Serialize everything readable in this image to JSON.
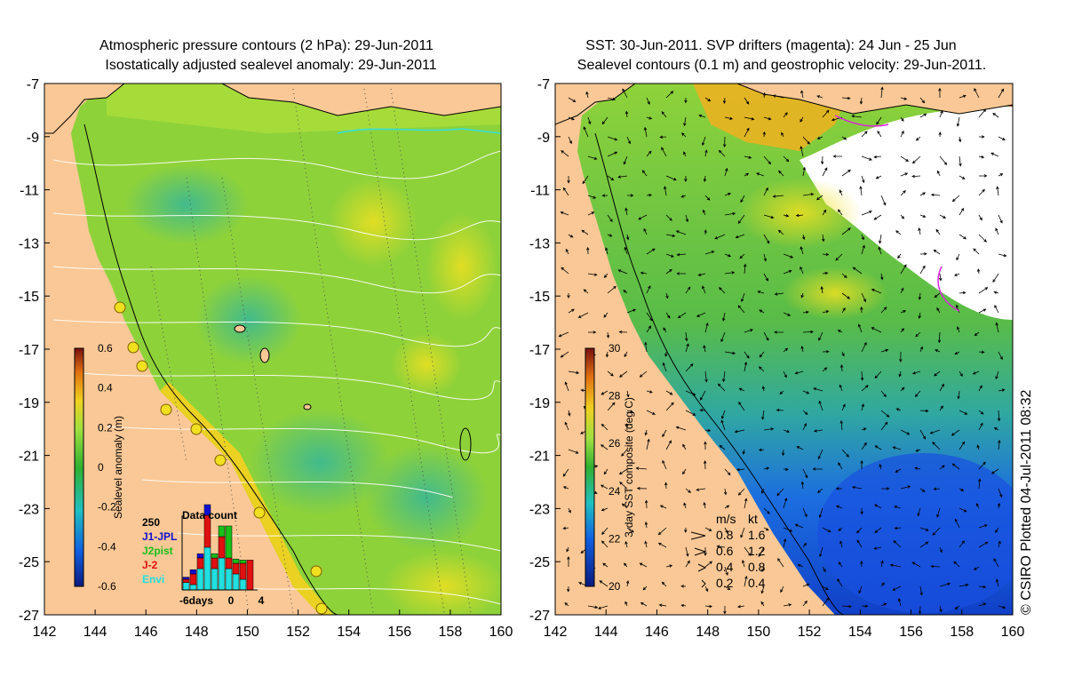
{
  "left_panel": {
    "title_line1": "Atmospheric pressure contours (2 hPa): 29-Jun-2011",
    "title_line2": "Isostatically adjusted sealevel anomaly: 29-Jun-2011",
    "colorbar": {
      "label": "Sealevel anomaly (m)",
      "ticks": [
        "0.6",
        "0.4",
        "0.2",
        "0",
        "-0.2",
        "-0.4",
        "-0.6"
      ]
    },
    "data_count": {
      "title": "Data count",
      "ymax_label": "250",
      "x_labels": [
        "-6days",
        "0",
        "4"
      ],
      "legend": [
        {
          "label": "J1-JPL",
          "color": "#1010d0"
        },
        {
          "label": "J2pist",
          "color": "#18c018"
        },
        {
          "label": "J-2",
          "color": "#e01010"
        },
        {
          "label": "Envi",
          "color": "#20e0e0"
        }
      ]
    }
  },
  "right_panel": {
    "title_line1": "SST: 30-Jun-2011. SVP drifters (magenta): 24 Jun - 25 Jun",
    "title_line2": "Sealevel contours (0.1 m) and geostrophic velocity: 29-Jun-2011.",
    "colorbar": {
      "label": "3-day SST composite (deg C)",
      "ticks": [
        "30",
        "28",
        "26",
        "24",
        "22",
        "20"
      ]
    },
    "speed_legend": {
      "header_ms": "m/s",
      "header_kt": "kt",
      "rows": [
        {
          "ms": "0.8",
          "kt": "1.6"
        },
        {
          "ms": "0.6",
          "kt": "1.2"
        },
        {
          "ms": "0.4",
          "kt": "0.8"
        },
        {
          "ms": "0.2",
          "kt": "0.4"
        }
      ]
    },
    "credit": "© CSIRO Plotted 04-Jul-2011 08:32"
  },
  "axes": {
    "x_ticks": [
      "142",
      "144",
      "146",
      "148",
      "150",
      "152",
      "154",
      "156",
      "158",
      "160"
    ],
    "y_ticks": [
      "-7",
      "-9",
      "-11",
      "-13",
      "-15",
      "-17",
      "-19",
      "-21",
      "-23",
      "-25",
      "-27"
    ]
  },
  "colors": {
    "land": "#fac896",
    "sea_green": "#8ed23a",
    "sst_green": "#54b848",
    "sst_blue": "#1850e0"
  }
}
